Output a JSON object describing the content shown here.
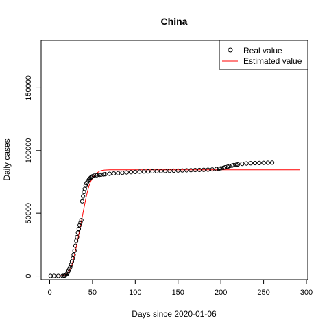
{
  "chart_data": {
    "type": "scatter",
    "title": "China",
    "xlabel": "Days since 2020-01-06",
    "ylabel": "Daily cases",
    "xlim": [
      0,
      300
    ],
    "ylim": [
      -3000,
      188000
    ],
    "x_ticks": [
      "0",
      "50",
      "100",
      "150",
      "200",
      "250",
      "300"
    ],
    "y_ticks": [
      "0",
      "50000",
      "100000",
      "150000"
    ],
    "grid": false,
    "legend_position": "top-right",
    "legend": [
      {
        "label": "Real value",
        "marker": "circle",
        "color": "#000000"
      },
      {
        "label": "Estimated value",
        "marker": "line",
        "color": "#ff0000"
      }
    ],
    "series": [
      {
        "name": "Real value",
        "kind": "points",
        "color": "#000000",
        "x": [
          1,
          5,
          10,
          15,
          17,
          18,
          19,
          20,
          21,
          22,
          23,
          24,
          25,
          26,
          27,
          28,
          29,
          30,
          31,
          32,
          33,
          34,
          35,
          36,
          37,
          38,
          39,
          40,
          41,
          42,
          43,
          44,
          45,
          46,
          47,
          48,
          49,
          50,
          52,
          55,
          58,
          60,
          63,
          65,
          70,
          75,
          80,
          85,
          90,
          95,
          100,
          105,
          110,
          115,
          120,
          125,
          130,
          135,
          140,
          145,
          150,
          155,
          160,
          165,
          170,
          175,
          180,
          185,
          190,
          195,
          198,
          200,
          203,
          205,
          208,
          210,
          213,
          215,
          218,
          220,
          225,
          230,
          235,
          240,
          245,
          250,
          255,
          260
        ],
        "y": [
          0,
          0,
          0,
          0,
          100,
          500,
          1000,
          1500,
          2500,
          4000,
          5500,
          7000,
          9000,
          11500,
          14000,
          17000,
          20000,
          24000,
          28000,
          31000,
          34500,
          37500,
          40500,
          42500,
          44500,
          59500,
          63500,
          67000,
          69500,
          72000,
          74000,
          75000,
          76000,
          77000,
          77800,
          78500,
          79000,
          79500,
          80000,
          80300,
          80600,
          80800,
          81000,
          81200,
          81500,
          81800,
          82000,
          82300,
          82600,
          82800,
          83000,
          83200,
          83300,
          83400,
          83500,
          83600,
          83700,
          83800,
          83900,
          84000,
          84100,
          84200,
          84300,
          84400,
          84500,
          84600,
          84700,
          84800,
          85000,
          85300,
          85600,
          85900,
          86300,
          86700,
          87200,
          87600,
          88000,
          88400,
          88700,
          89000,
          89400,
          89700,
          89900,
          90000,
          90100,
          90200,
          90300,
          90400
        ]
      },
      {
        "name": "Estimated value",
        "kind": "line",
        "color": "#ff0000",
        "x": [
          0,
          10,
          15,
          18,
          20,
          22,
          24,
          26,
          28,
          30,
          32,
          34,
          36,
          38,
          40,
          42,
          44,
          46,
          48,
          50,
          52,
          54,
          56,
          58,
          60,
          62,
          64,
          66,
          70,
          80,
          100,
          150,
          200,
          250,
          292
        ],
        "y": [
          0,
          0,
          300,
          800,
          1500,
          3000,
          5500,
          9000,
          14000,
          20000,
          26000,
          33000,
          40000,
          47000,
          54000,
          61000,
          67000,
          72000,
          75500,
          78000,
          80000,
          81500,
          82500,
          83500,
          84000,
          84300,
          84500,
          84600,
          84700,
          84700,
          84700,
          84700,
          84700,
          84700,
          84700
        ]
      }
    ]
  }
}
